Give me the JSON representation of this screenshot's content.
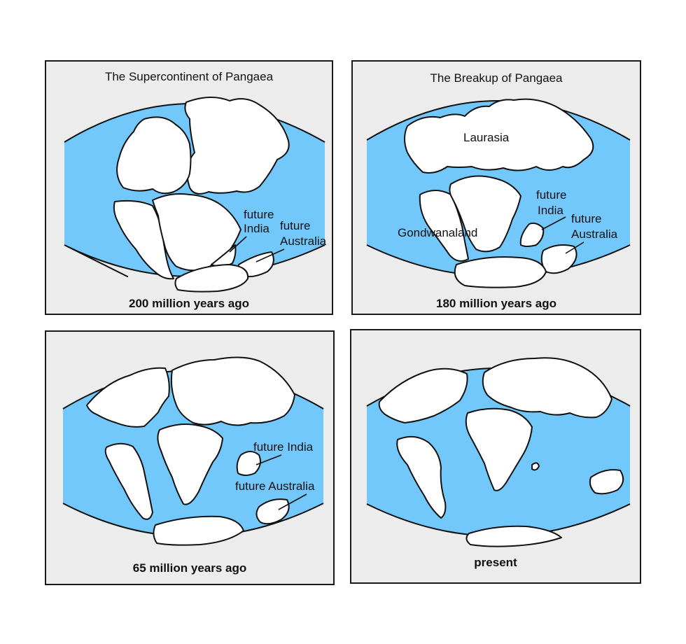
{
  "colors": {
    "ocean": "#72c8fb",
    "panel_bg": "#ececec",
    "land": "#ffffff",
    "outline": "#111111"
  },
  "panels": [
    {
      "title": "The Supercontinent of Pangaea",
      "caption": "200 million years ago",
      "labels": {
        "india_1": "future",
        "india_2": "India",
        "aus_1": "future",
        "aus_2": "Australia"
      }
    },
    {
      "title": "The Breakup of Pangaea",
      "caption": "180 million years ago",
      "labels": {
        "laurasia": "Laurasia",
        "gondwana": "Gondwanaland",
        "india_1": "future",
        "india_2": "India",
        "aus_1": "future",
        "aus_2": "Australia"
      }
    },
    {
      "title": "",
      "caption": "65 million years ago",
      "labels": {
        "india": "future India",
        "australia": "future Australia"
      }
    },
    {
      "title": "",
      "caption": "present",
      "labels": {}
    }
  ]
}
